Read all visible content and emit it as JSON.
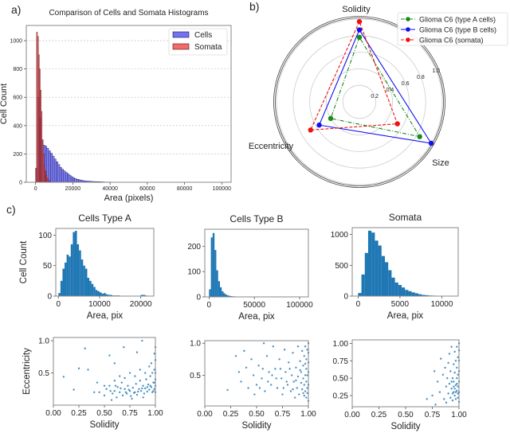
{
  "chart_data": [
    {
      "id": "a",
      "panel_label": "a)",
      "type": "bar",
      "title": "Comparison of Cells and Somata Histograms",
      "xlabel": "Area (pixels)",
      "ylabel": "Cell Count",
      "xlim": [
        -5000,
        105000
      ],
      "ylim": [
        0,
        1107
      ],
      "xticks": [
        0,
        20000,
        40000,
        60000,
        80000,
        100000
      ],
      "yticks": [
        0,
        200,
        400,
        600,
        800,
        1000
      ],
      "grid": "y dashed",
      "legend": "top-right",
      "series": [
        {
          "name": "Cells",
          "color": "#5a5af0",
          "edge": "#10105a",
          "bin_start": 0,
          "bin_width": 1000,
          "counts": [
            100,
            600,
            450,
            300,
            262,
            255,
            240,
            222,
            205,
            185,
            165,
            145,
            125,
            105,
            92,
            80,
            70,
            60,
            50,
            40,
            32,
            26,
            21,
            18,
            15,
            12,
            10,
            9,
            8,
            7,
            6,
            5,
            5,
            4,
            4,
            3,
            3,
            2,
            2,
            2,
            2,
            1,
            1,
            1,
            1,
            1,
            1,
            1,
            1,
            1
          ]
        },
        {
          "name": "Somata",
          "color": "#f05050",
          "edge": "#5a1010",
          "bin_start": 0,
          "bin_width": 500,
          "counts": [
            100,
            1060,
            1030,
            900,
            800,
            650,
            500,
            300,
            200,
            120,
            80,
            50,
            30,
            20,
            10,
            5
          ]
        }
      ]
    },
    {
      "id": "b",
      "panel_label": "b)",
      "type": "radar",
      "axes": [
        "Solidity",
        "Eccentricity",
        "Size"
      ],
      "rlim": [
        0,
        1
      ],
      "rticks": [
        "0.2",
        "0.4",
        "0.6",
        "0.8",
        "1.0"
      ],
      "legend": "top-right",
      "series": [
        {
          "name": "Glioma C6 (type A cells)",
          "color": "#1a8a1a",
          "linestyle": "dashdot",
          "values": [
            0.78,
            0.4,
            0.84
          ]
        },
        {
          "name": "Glioma C6 (type B cells)",
          "color": "#1010f0",
          "linestyle": "solid",
          "values": [
            0.87,
            0.56,
            1.0
          ]
        },
        {
          "name": "Glioma C6 (somata)",
          "color": "#f01010",
          "linestyle": "dashed",
          "values": [
            0.97,
            0.68,
            0.53
          ]
        }
      ]
    },
    {
      "id": "c-hist-a",
      "panel_label": "c)",
      "type": "bar",
      "title": "Cells Type A",
      "xlabel": "Area, pix",
      "ylabel": "Cell Count",
      "xlim": [
        -630,
        23150
      ],
      "ylim": [
        0,
        111
      ],
      "xticks": [
        0,
        10000,
        20000
      ],
      "yticks": [
        0,
        50,
        100
      ],
      "color": "#1f77b4",
      "bin_start": 0,
      "bin_width": 500,
      "counts": [
        5,
        25,
        45,
        55,
        68,
        65,
        85,
        105,
        107,
        85,
        75,
        60,
        50,
        45,
        30,
        25,
        20,
        15,
        10,
        8,
        6,
        4,
        5,
        3,
        2,
        2,
        1,
        1,
        1,
        1,
        0,
        0,
        0,
        0,
        0,
        0,
        0,
        0,
        0,
        0,
        2,
        2,
        1
      ]
    },
    {
      "id": "c-hist-b",
      "type": "bar",
      "title": "Cells Type B",
      "xlabel": "Area, pix",
      "xlim": [
        -4700,
        109700
      ],
      "ylim": [
        0,
        267
      ],
      "xticks": [
        0,
        50000,
        100000
      ],
      "yticks": [
        0,
        100,
        200
      ],
      "color": "#1f77b4",
      "bin_start": 0,
      "bin_width": 2000,
      "counts": [
        30,
        235,
        252,
        185,
        105,
        62,
        38,
        22,
        14,
        9,
        6,
        4,
        3,
        2,
        2,
        1,
        1,
        1,
        1,
        1,
        1,
        0,
        1,
        0,
        0,
        1,
        0,
        0,
        0,
        0,
        0,
        0,
        0,
        0,
        0,
        0,
        0,
        1,
        0,
        0,
        0,
        0,
        0,
        0,
        0,
        0,
        0,
        0,
        0,
        1
      ]
    },
    {
      "id": "c-hist-somata",
      "type": "bar",
      "title": "Somata",
      "xlabel": "Area, pix",
      "xlim": [
        -700,
        11950
      ],
      "ylim": [
        0,
        1110
      ],
      "xticks": [
        0,
        5000,
        10000
      ],
      "yticks": [
        0,
        500,
        1000
      ],
      "color": "#1f77b4",
      "bin_start": 0,
      "bin_width": 400,
      "counts": [
        50,
        350,
        700,
        1060,
        1030,
        900,
        820,
        650,
        550,
        420,
        300,
        220,
        180,
        140,
        100,
        80,
        60,
        45,
        30,
        20,
        15,
        10,
        8,
        5,
        3,
        2,
        1,
        1
      ]
    },
    {
      "id": "c-scatter-a",
      "type": "scatter",
      "xlabel": "Solidity",
      "ylabel": "Eccentricity",
      "xlim": [
        0,
        1
      ],
      "ylim": [
        0.0,
        1.05
      ],
      "xticks": [
        "0.00",
        "0.25",
        "0.50",
        "0.75",
        "1.00"
      ],
      "yticks": [
        "0.5",
        "1.0"
      ],
      "color": "#1f77b4",
      "points": [
        [
          0.1,
          0.44
        ],
        [
          0.2,
          0.24
        ],
        [
          0.25,
          0.57
        ],
        [
          0.31,
          0.88
        ],
        [
          0.34,
          0.55
        ],
        [
          0.55,
          0.77
        ],
        [
          0.69,
          0.9
        ],
        [
          0.87,
          1.0
        ],
        [
          0.82,
          0.82
        ],
        [
          0.6,
          0.65
        ],
        [
          0.45,
          0.2
        ],
        [
          0.5,
          0.15
        ],
        [
          0.52,
          0.25
        ],
        [
          0.55,
          0.3
        ],
        [
          0.58,
          0.18
        ],
        [
          0.6,
          0.22
        ],
        [
          0.62,
          0.12
        ],
        [
          0.63,
          0.28
        ],
        [
          0.65,
          0.2
        ],
        [
          0.67,
          0.35
        ],
        [
          0.68,
          0.15
        ],
        [
          0.7,
          0.25
        ],
        [
          0.72,
          0.18
        ],
        [
          0.73,
          0.3
        ],
        [
          0.75,
          0.22
        ],
        [
          0.76,
          0.14
        ],
        [
          0.78,
          0.27
        ],
        [
          0.8,
          0.2
        ],
        [
          0.81,
          0.33
        ],
        [
          0.82,
          0.16
        ],
        [
          0.84,
          0.25
        ],
        [
          0.85,
          0.38
        ],
        [
          0.86,
          0.22
        ],
        [
          0.88,
          0.3
        ],
        [
          0.89,
          0.18
        ],
        [
          0.9,
          0.26
        ],
        [
          0.91,
          0.4
        ],
        [
          0.92,
          0.21
        ],
        [
          0.93,
          0.32
        ],
        [
          0.94,
          0.24
        ],
        [
          0.95,
          0.45
        ],
        [
          0.96,
          0.28
        ],
        [
          0.97,
          0.2
        ],
        [
          0.98,
          0.35
        ],
        [
          0.99,
          0.55
        ],
        [
          1.0,
          0.3
        ],
        [
          1.0,
          0.7
        ],
        [
          1.0,
          0.9
        ],
        [
          0.99,
          0.25
        ],
        [
          0.97,
          0.5
        ],
        [
          0.94,
          0.6
        ],
        [
          0.9,
          0.5
        ],
        [
          0.8,
          0.45
        ],
        [
          0.7,
          0.42
        ],
        [
          0.6,
          0.38
        ],
        [
          0.5,
          0.3
        ],
        [
          0.4,
          0.2
        ],
        [
          0.43,
          0.35
        ],
        [
          0.65,
          0.45
        ],
        [
          0.75,
          0.5
        ],
        [
          0.85,
          0.55
        ],
        [
          0.96,
          0.65
        ],
        [
          0.99,
          0.8
        ],
        [
          0.88,
          0.12
        ],
        [
          0.77,
          0.1
        ],
        [
          0.57,
          0.08
        ],
        [
          1.0,
          0.2
        ],
        [
          1.0,
          0.4
        ],
        [
          1.0,
          0.5
        ],
        [
          0.99,
          0.35
        ],
        [
          0.98,
          0.22
        ],
        [
          0.95,
          0.3
        ],
        [
          0.92,
          0.28
        ],
        [
          0.87,
          0.26
        ],
        [
          0.83,
          0.21
        ],
        [
          0.79,
          0.19
        ],
        [
          0.74,
          0.24
        ],
        [
          0.71,
          0.2
        ],
        [
          0.66,
          0.26
        ],
        [
          0.61,
          0.3
        ],
        [
          0.56,
          0.22
        ]
      ]
    },
    {
      "id": "c-scatter-b",
      "type": "scatter",
      "xlabel": "Solidity",
      "xlim": [
        0,
        1
      ],
      "ylim": [
        0.02,
        1.04
      ],
      "xticks": [
        "0.00",
        "0.25",
        "0.50",
        "0.75",
        "1.00"
      ],
      "yticks": [
        "0.5",
        "1.0"
      ],
      "color": "#1f77b4",
      "points": [
        [
          0.22,
          0.27
        ],
        [
          0.3,
          0.8
        ],
        [
          0.33,
          0.55
        ],
        [
          0.35,
          0.4
        ],
        [
          0.38,
          0.88
        ],
        [
          0.4,
          0.62
        ],
        [
          0.42,
          0.3
        ],
        [
          0.45,
          0.75
        ],
        [
          0.47,
          0.5
        ],
        [
          0.5,
          0.35
        ],
        [
          0.52,
          0.65
        ],
        [
          0.55,
          0.45
        ],
        [
          0.57,
          1.0
        ],
        [
          0.58,
          0.25
        ],
        [
          0.6,
          0.8
        ],
        [
          0.62,
          0.55
        ],
        [
          0.64,
          0.35
        ],
        [
          0.66,
          0.95
        ],
        [
          0.68,
          0.6
        ],
        [
          0.7,
          0.3
        ],
        [
          0.72,
          0.75
        ],
        [
          0.74,
          0.45
        ],
        [
          0.75,
          0.2
        ],
        [
          0.77,
          0.9
        ],
        [
          0.78,
          0.55
        ],
        [
          0.8,
          0.35
        ],
        [
          0.81,
          0.7
        ],
        [
          0.83,
          0.25
        ],
        [
          0.84,
          0.5
        ],
        [
          0.85,
          0.85
        ],
        [
          0.86,
          0.4
        ],
        [
          0.87,
          0.15
        ],
        [
          0.88,
          0.62
        ],
        [
          0.89,
          0.3
        ],
        [
          0.9,
          0.95
        ],
        [
          0.9,
          0.48
        ],
        [
          0.91,
          0.2
        ],
        [
          0.92,
          0.72
        ],
        [
          0.93,
          0.38
        ],
        [
          0.93,
          0.55
        ],
        [
          0.94,
          0.28
        ],
        [
          0.94,
          0.88
        ],
        [
          0.95,
          0.45
        ],
        [
          0.95,
          0.65
        ],
        [
          0.96,
          0.18
        ],
        [
          0.96,
          0.35
        ],
        [
          0.96,
          0.8
        ],
        [
          0.97,
          0.5
        ],
        [
          0.97,
          0.25
        ],
        [
          0.97,
          0.95
        ],
        [
          0.98,
          0.4
        ],
        [
          0.98,
          0.6
        ],
        [
          0.98,
          0.15
        ],
        [
          0.98,
          0.75
        ],
        [
          0.99,
          0.3
        ],
        [
          0.99,
          0.5
        ],
        [
          0.99,
          0.9
        ],
        [
          0.99,
          0.22
        ],
        [
          1.0,
          0.1
        ],
        [
          1.0,
          0.35
        ],
        [
          1.0,
          0.55
        ],
        [
          1.0,
          0.7
        ],
        [
          1.0,
          0.85
        ],
        [
          1.0,
          1.0
        ],
        [
          0.97,
          0.68
        ],
        [
          0.95,
          0.22
        ],
        [
          0.92,
          0.58
        ],
        [
          0.88,
          0.42
        ],
        [
          0.85,
          0.28
        ],
        [
          0.82,
          0.6
        ],
        [
          0.79,
          0.4
        ],
        [
          0.76,
          0.3
        ],
        [
          0.73,
          0.6
        ],
        [
          0.69,
          0.45
        ],
        [
          0.65,
          0.5
        ],
        [
          0.61,
          0.4
        ],
        [
          0.56,
          0.6
        ],
        [
          0.53,
          0.3
        ],
        [
          0.48,
          0.2
        ]
      ]
    },
    {
      "id": "c-scatter-somata",
      "type": "scatter",
      "xlabel": "Solidity",
      "xlim": [
        0,
        1
      ],
      "ylim": [
        0.09,
        1.05
      ],
      "xticks": [
        "0.00",
        "0.25",
        "0.50",
        "0.75",
        "1.00"
      ],
      "yticks": [
        "0.25",
        "0.50",
        "0.75",
        "1.00"
      ],
      "color": "#1f77b4",
      "points": [
        [
          0.7,
          0.2
        ],
        [
          0.75,
          0.25
        ],
        [
          0.77,
          0.6
        ],
        [
          0.78,
          0.12
        ],
        [
          0.8,
          0.45
        ],
        [
          0.82,
          0.3
        ],
        [
          0.83,
          0.78
        ],
        [
          0.85,
          0.55
        ],
        [
          0.86,
          0.2
        ],
        [
          0.87,
          0.65
        ],
        [
          0.88,
          0.38
        ],
        [
          0.88,
          0.15
        ],
        [
          0.89,
          0.5
        ],
        [
          0.9,
          0.72
        ],
        [
          0.9,
          0.28
        ],
        [
          0.91,
          0.85
        ],
        [
          0.91,
          0.42
        ],
        [
          0.92,
          0.6
        ],
        [
          0.92,
          0.22
        ],
        [
          0.93,
          0.35
        ],
        [
          0.93,
          0.95
        ],
        [
          0.94,
          0.5
        ],
        [
          0.94,
          0.18
        ],
        [
          0.95,
          0.7
        ],
        [
          0.95,
          0.3
        ],
        [
          0.95,
          0.45
        ],
        [
          0.96,
          0.88
        ],
        [
          0.96,
          0.25
        ],
        [
          0.96,
          0.58
        ],
        [
          0.97,
          0.4
        ],
        [
          0.97,
          0.75
        ],
        [
          0.97,
          0.2
        ],
        [
          0.98,
          0.32
        ],
        [
          0.98,
          0.5
        ],
        [
          0.98,
          0.65
        ],
        [
          0.98,
          0.95
        ],
        [
          0.99,
          0.22
        ],
        [
          0.99,
          0.38
        ],
        [
          0.99,
          0.55
        ],
        [
          0.99,
          0.8
        ],
        [
          1.0,
          0.16
        ],
        [
          1.0,
          0.3
        ],
        [
          1.0,
          0.45
        ],
        [
          1.0,
          0.6
        ],
        [
          1.0,
          0.75
        ],
        [
          1.0,
          0.9
        ],
        [
          1.0,
          1.0
        ],
        [
          0.99,
          0.28
        ],
        [
          0.98,
          0.42
        ],
        [
          0.97,
          0.3
        ],
        [
          0.96,
          0.35
        ],
        [
          0.95,
          0.38
        ],
        [
          0.94,
          0.28
        ],
        [
          0.93,
          0.45
        ]
      ]
    }
  ]
}
